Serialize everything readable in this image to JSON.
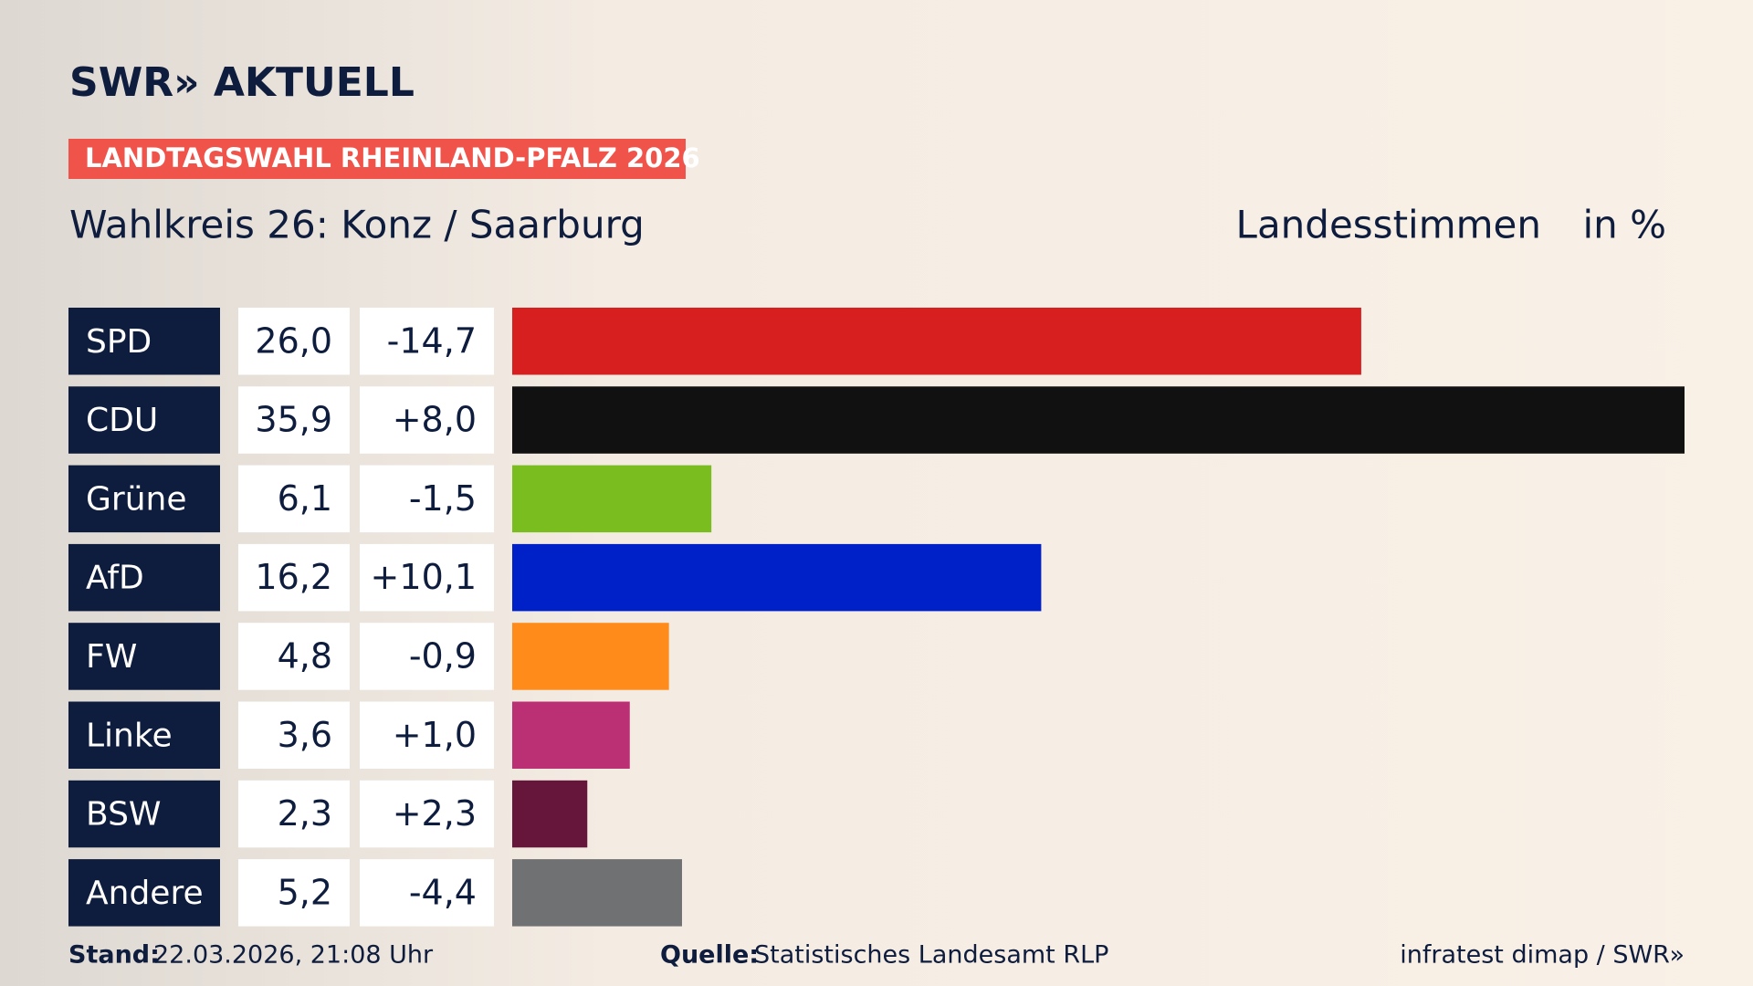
{
  "brand": "SWR» AKTUELL",
  "banner": "LANDTAGSWAHL RHEINLAND-PFALZ 2026",
  "chart_data": {
    "type": "bar",
    "title": "Wahlkreis 26: Konz / Saarburg",
    "subtitle": "Landesstimmen",
    "unit": "in %",
    "categories": [
      "SPD",
      "CDU",
      "Grüne",
      "AfD",
      "FW",
      "Linke",
      "BSW",
      "Andere"
    ],
    "values": [
      26.0,
      35.9,
      6.1,
      16.2,
      4.8,
      3.6,
      2.3,
      5.2
    ],
    "value_labels": [
      "26,0",
      "35,9",
      "6,1",
      "16,2",
      "4,8",
      "3,6",
      "2,3",
      "5,2"
    ],
    "changes": [
      -14.7,
      8.0,
      -1.5,
      10.1,
      -0.9,
      1.0,
      2.3,
      -4.4
    ],
    "change_labels": [
      "-14,7",
      "+8,0",
      "-1,5",
      "+10,1",
      "-0,9",
      "+1,0",
      "+2,3",
      "-4,4"
    ],
    "colors": [
      "#d71f1f",
      "#111111",
      "#79bd1f",
      "#0021c8",
      "#ff8c1a",
      "#bb2f74",
      "#67163b",
      "#707173"
    ]
  },
  "footer": {
    "stand_label": "Stand:",
    "stand": "22.03.2026, 21:08 Uhr",
    "source_label": "Quelle:",
    "source": "Statistisches Landesamt RLP",
    "credit": "infratest dimap / SWR»"
  }
}
